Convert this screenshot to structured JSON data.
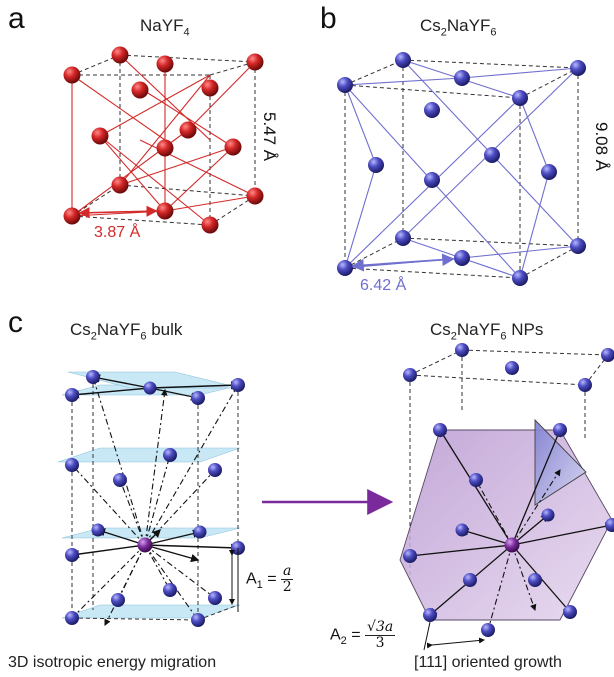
{
  "panels": {
    "a": {
      "letter": "a",
      "title_main": "NaYF",
      "title_sub": "4",
      "width_label": "3.87 Å",
      "height_label": "5.47 Å"
    },
    "b": {
      "letter": "b",
      "title_main": "Cs",
      "title_sub1": "2",
      "title_mid": "NaYF",
      "title_sub2": "6",
      "width_label": "6.42 Å",
      "height_label": "9.08 Å"
    },
    "c": {
      "letter": "c",
      "left_title_main": "Cs",
      "left_title_sub1": "2",
      "left_title_mid": "NaYF",
      "left_title_sub2": "6",
      "left_title_suffix": " bulk",
      "right_title_main": "Cs",
      "right_title_sub1": "2",
      "right_title_mid": "NaYF",
      "right_title_sub2": "6",
      "right_title_suffix": " NPs",
      "a1_prefix": "A",
      "a1_sub": "1",
      "a1_eq": " = ",
      "a1_num": "a",
      "a1_den": "2",
      "a2_prefix": "A",
      "a2_sub": "2",
      "a2_eq": " = ",
      "a2_num": "√3a",
      "a2_den": "3",
      "left_caption": "3D isotropic energy migration",
      "right_caption": "[111] oriented growth"
    }
  },
  "colors": {
    "red_atom": "#c81e1e",
    "blue_atom": "#4a4ab8",
    "purple_atom": "#6a2a8a",
    "arrow": "#7a2a9a",
    "plane": "#bfe4f5",
    "facet": "#c9a8d8"
  }
}
